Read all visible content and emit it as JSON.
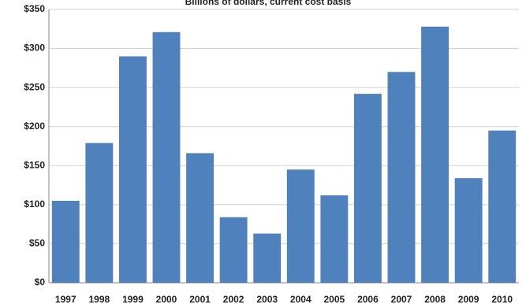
{
  "chart_data": {
    "type": "bar",
    "subtitle": "Billions of dollars, current cost basis",
    "categories": [
      "1997",
      "1998",
      "1999",
      "2000",
      "2001",
      "2002",
      "2003",
      "2004",
      "2005",
      "2006",
      "2007",
      "2008",
      "2009",
      "2010"
    ],
    "values": [
      105,
      179,
      290,
      321,
      166,
      84,
      63,
      145,
      112,
      242,
      270,
      328,
      134,
      195
    ],
    "color": "#4f81bd",
    "ylim": [
      0,
      350
    ],
    "yticks": [
      {
        "value": 0,
        "label": "$0"
      },
      {
        "value": 50,
        "label": "$50"
      },
      {
        "value": 100,
        "label": "$100"
      },
      {
        "value": 150,
        "label": "$150"
      },
      {
        "value": 200,
        "label": "$200"
      },
      {
        "value": 250,
        "label": "$250"
      },
      {
        "value": 300,
        "label": "$300"
      },
      {
        "value": 350,
        "label": "$350"
      }
    ],
    "grid": true
  }
}
